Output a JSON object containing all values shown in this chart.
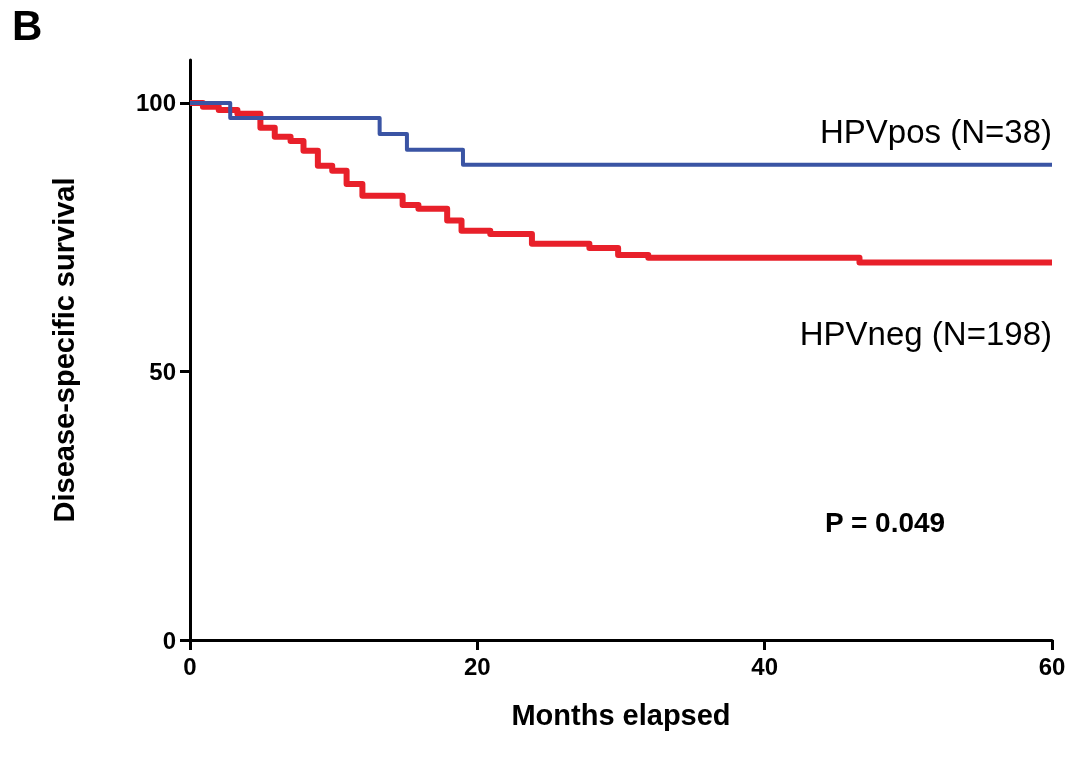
{
  "chart_data": {
    "type": "step",
    "title": "B",
    "xlabel": "Months elapsed",
    "ylabel": "Disease-specific survival",
    "xlim": [
      0,
      60
    ],
    "xticks": [
      0,
      20,
      40,
      60
    ],
    "ylim": [
      0,
      108
    ],
    "yticks": [
      0,
      50,
      100
    ],
    "grid": false,
    "legend": false,
    "marker": "none",
    "line_style": "solid",
    "series": [
      {
        "name": "HPVpos (N=38)",
        "color": "#3a54a4",
        "x": [
          0,
          2.8,
          13.2,
          15.1,
          19.0,
          60
        ],
        "values": [
          100,
          97.2,
          94.2,
          91.3,
          88.5,
          88.5
        ]
      },
      {
        "name": "HPVneg (N=198)",
        "color": "#e8202a",
        "x": [
          0,
          0.9,
          2.0,
          3.3,
          4.9,
          5.9,
          7.0,
          7.9,
          8.9,
          9.9,
          10.9,
          12.0,
          14.8,
          15.9,
          17.9,
          18.9,
          20.9,
          23.8,
          27.8,
          29.8,
          31.9,
          46.6,
          60
        ],
        "values": [
          100,
          99.3,
          98.7,
          98.0,
          95.4,
          93.7,
          92.9,
          91.1,
          88.3,
          87.4,
          84.9,
          82.7,
          81.0,
          80.3,
          78.1,
          76.2,
          75.6,
          73.8,
          73.0,
          71.7,
          71.2,
          70.3,
          70.3
        ]
      }
    ],
    "annotations": [
      "P = 0.049"
    ]
  }
}
